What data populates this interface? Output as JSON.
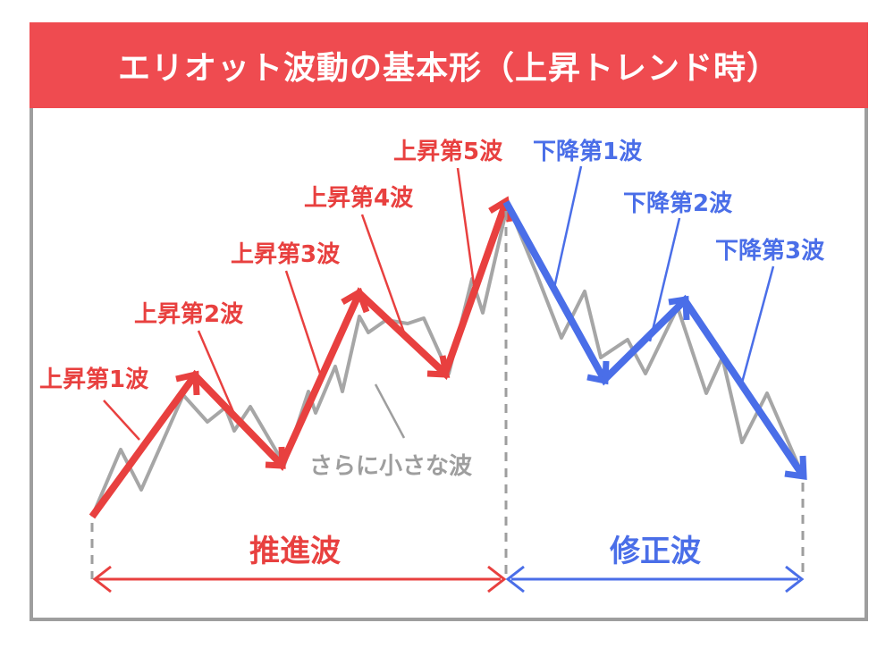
{
  "title": "エリオット波動の基本形（上昇トレンド時）",
  "colors": {
    "accent_red": "#e8403f",
    "banner_red": "#ef4b50",
    "blue": "#4a6ee8",
    "gray": "#9e9e9e"
  },
  "labels": {
    "up1": "上昇第1波",
    "up2": "上昇第2波",
    "up3": "上昇第3波",
    "up4": "上昇第4波",
    "up5": "上昇第5波",
    "down1": "下降第1波",
    "down2": "下降第2波",
    "down3": "下降第3波",
    "small_waves": "さらに小さな波",
    "impulse": "推進波",
    "corrective": "修正波"
  }
}
